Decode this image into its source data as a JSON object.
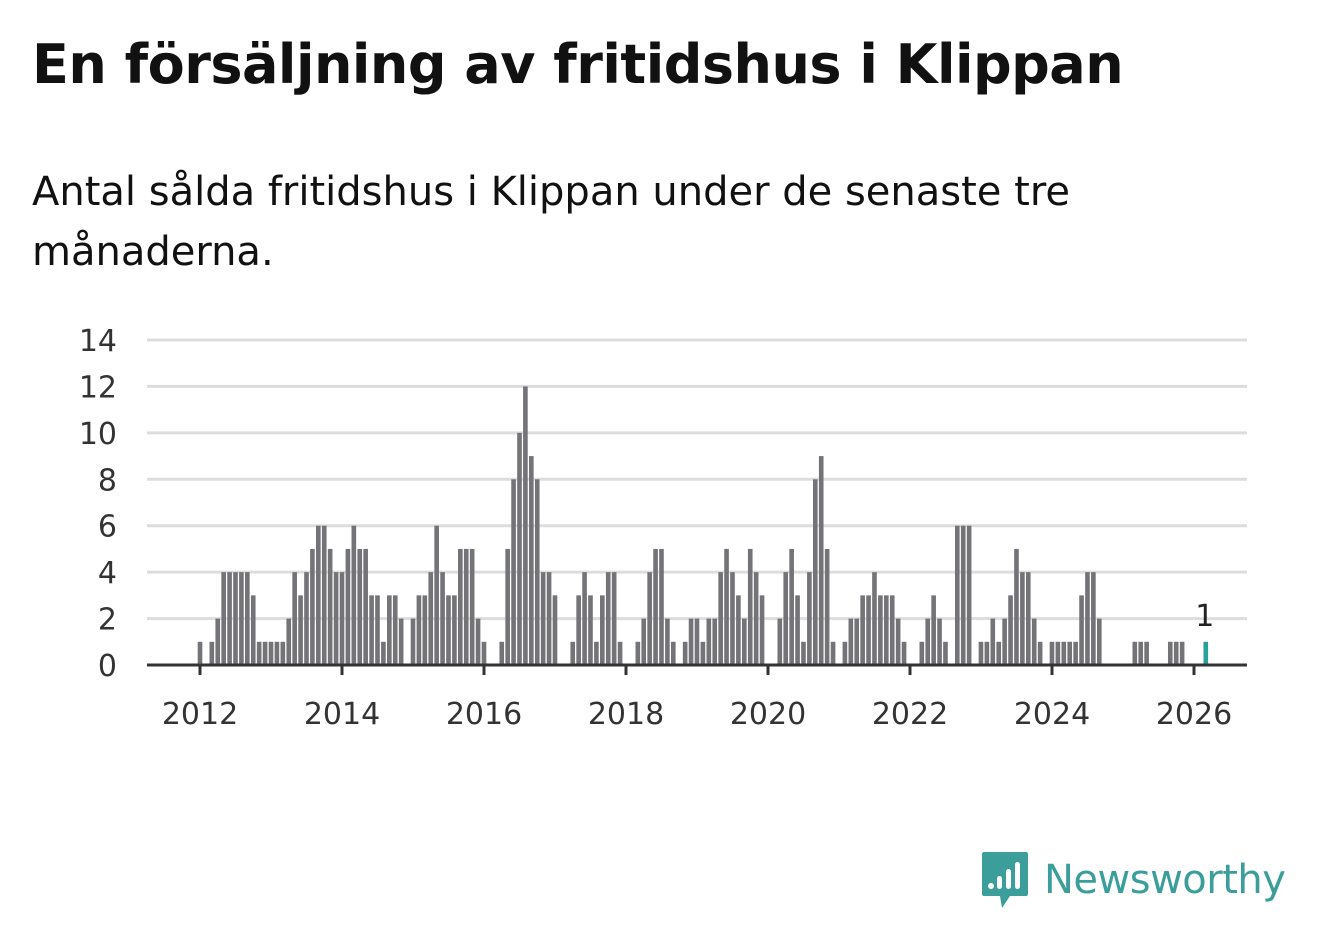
{
  "header": {
    "title": "En försäljning av fritidshus i Klippan",
    "subtitle": "Antal sålda fritidshus i Klippan under de senaste tre månaderna."
  },
  "brand": {
    "name": "Newsworthy",
    "logo_icon": "newsworthy-logo-icon"
  },
  "colors": {
    "bar": "#747378",
    "highlight": "#27a19a",
    "grid": "#dddddd",
    "axis": "#333333",
    "brand": "#3b9e9a"
  },
  "chart_data": {
    "type": "bar",
    "title": "En försäljning av fritidshus i Klippan",
    "xlabel": "",
    "ylabel": "",
    "ylim": [
      0,
      14
    ],
    "yticks": [
      0,
      2,
      4,
      6,
      8,
      10,
      12,
      14
    ],
    "xticks": [
      "2012",
      "2014",
      "2016",
      "2018",
      "2020",
      "2022",
      "2024",
      "2026"
    ],
    "xlim": [
      2011.25,
      2026.75
    ],
    "start": 2011.25,
    "step_years": 0.08333,
    "values": [
      0,
      0,
      0,
      0,
      0,
      0,
      0,
      0,
      0,
      1,
      0,
      1,
      2,
      4,
      4,
      4,
      4,
      4,
      3,
      1,
      1,
      1,
      1,
      1,
      2,
      4,
      3,
      4,
      5,
      6,
      6,
      5,
      4,
      4,
      5,
      6,
      5,
      5,
      3,
      3,
      1,
      3,
      3,
      2,
      0,
      2,
      3,
      3,
      4,
      6,
      4,
      3,
      3,
      5,
      5,
      5,
      2,
      1,
      0,
      0,
      1,
      5,
      8,
      10,
      12,
      9,
      8,
      4,
      4,
      3,
      0,
      0,
      1,
      3,
      4,
      3,
      1,
      3,
      4,
      4,
      1,
      0,
      0,
      1,
      2,
      4,
      5,
      5,
      2,
      1,
      0,
      1,
      2,
      2,
      1,
      2,
      2,
      4,
      5,
      4,
      3,
      2,
      5,
      4,
      3,
      0,
      0,
      2,
      4,
      5,
      3,
      1,
      4,
      8,
      9,
      5,
      1,
      0,
      1,
      2,
      2,
      3,
      3,
      4,
      3,
      3,
      3,
      2,
      1,
      0,
      0,
      1,
      2,
      3,
      2,
      1,
      0,
      6,
      6,
      6,
      0,
      1,
      1,
      2,
      1,
      2,
      3,
      5,
      4,
      4,
      2,
      1,
      0,
      1,
      1,
      1,
      1,
      1,
      3,
      4,
      4,
      2,
      0,
      0,
      0,
      0,
      0,
      1,
      1,
      1,
      0,
      0,
      0,
      1,
      1,
      1,
      0,
      0,
      0,
      1
    ],
    "highlight_index": 179,
    "highlight_label": "1"
  }
}
